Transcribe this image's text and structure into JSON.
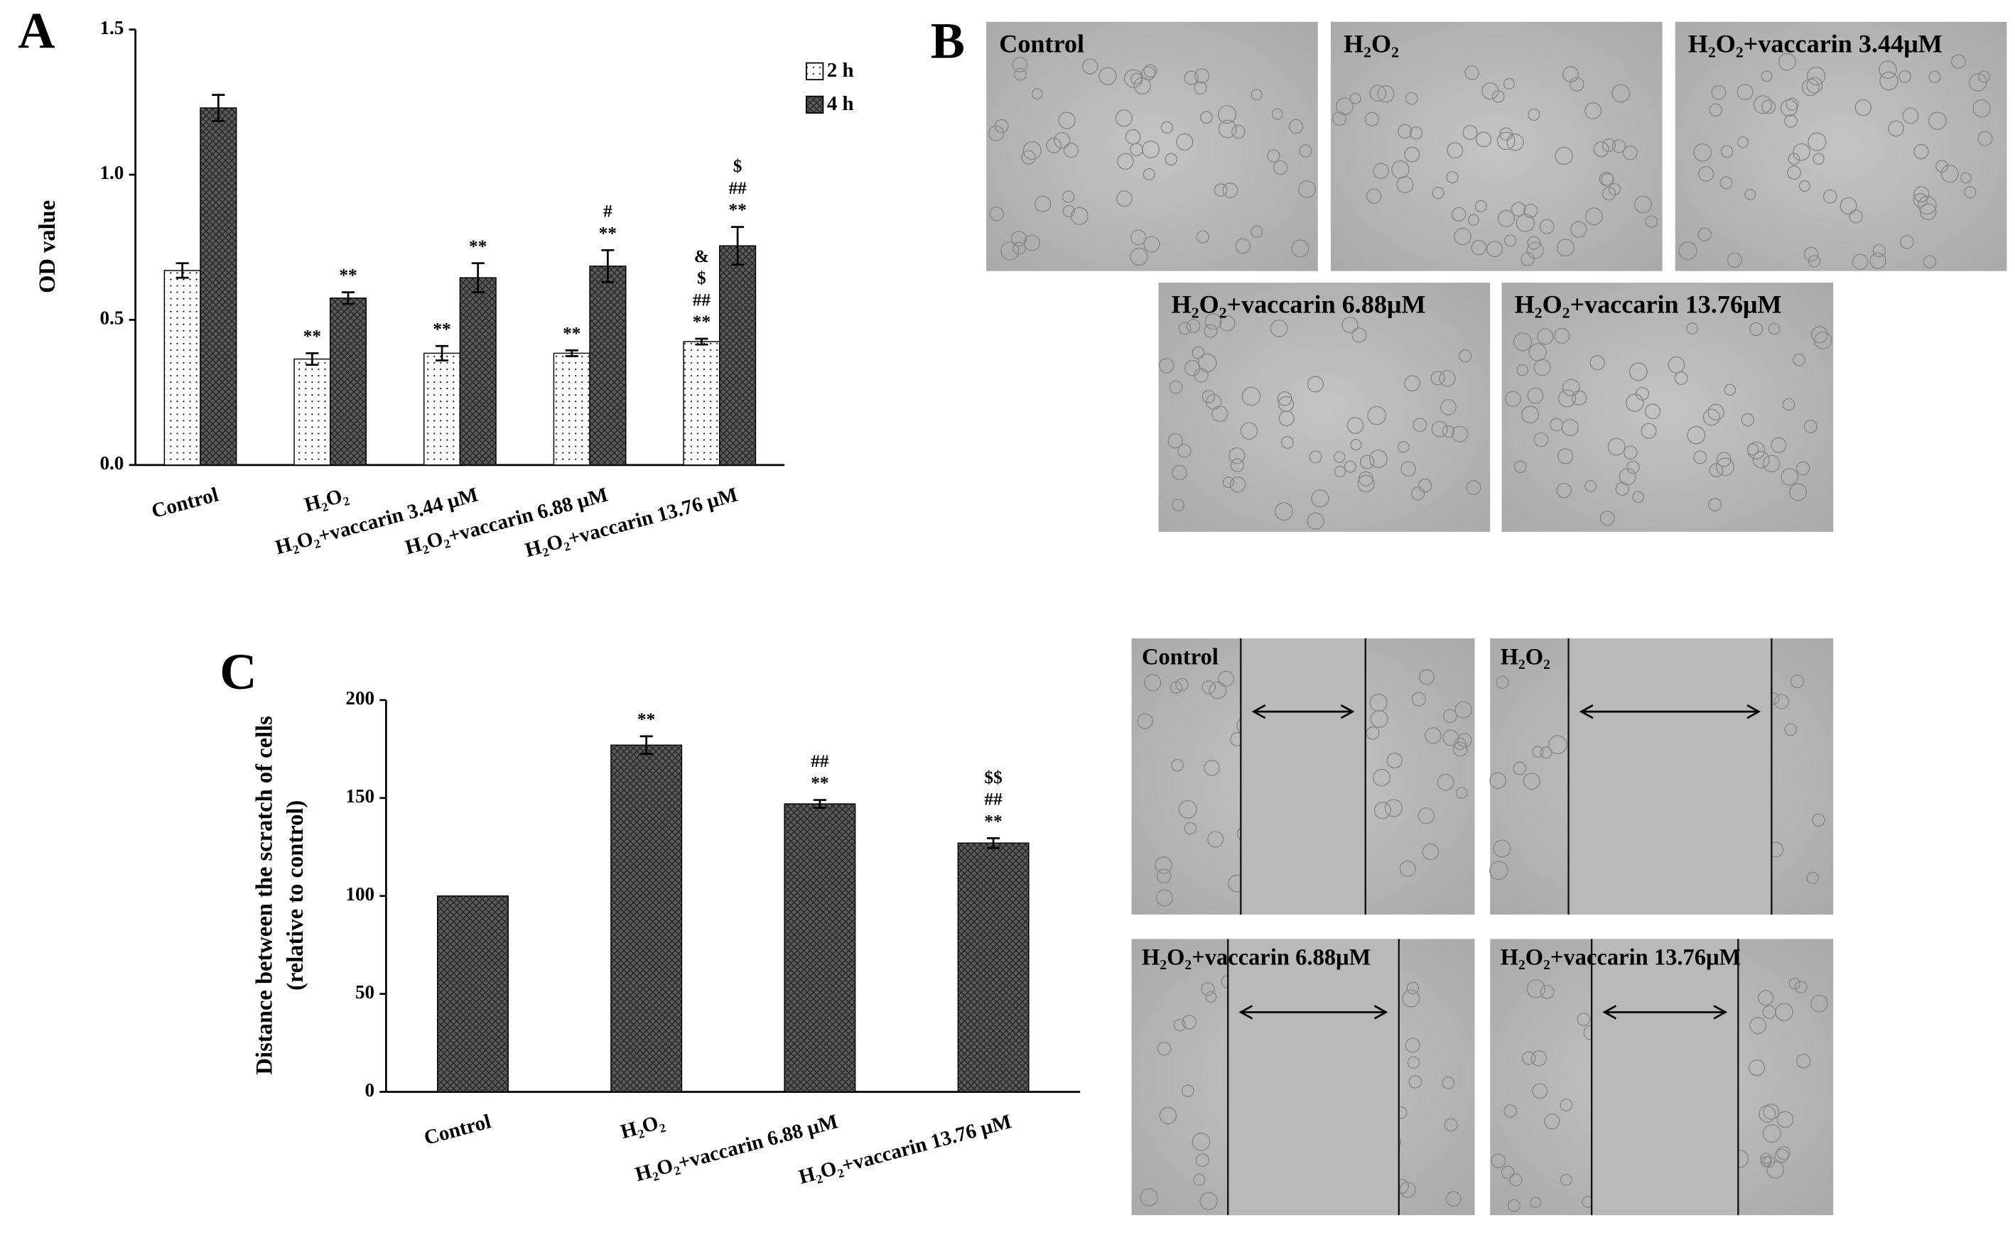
{
  "panel_letters": [
    "A",
    "B",
    "C"
  ],
  "chart_data": [
    {
      "type": "bar",
      "y_label": [
        "OD value"
      ],
      "categories": [
        "Control",
        "H₂O₂",
        "H₂O₂+vaccarin 3.44 μM",
        "H₂O₂+vaccarin 6.88 μM",
        "H₂O₂+vaccarin 13.76 μM"
      ],
      "series": [
        {
          "name": "2 h",
          "color": "#ffffff",
          "pattern": "dots",
          "values": [
            0.67,
            0.365,
            0.385,
            0.385,
            0.425
          ],
          "errors": [
            0.025,
            0.02,
            0.025,
            0.01,
            0.01
          ],
          "annotations": [
            null,
            [
              "**"
            ],
            [
              "**"
            ],
            [
              "**"
            ],
            [
              "&",
              "$",
              "##",
              "**"
            ]
          ]
        },
        {
          "name": "4 h",
          "color": "#5a5a5a",
          "pattern": "crosshatch",
          "values": [
            1.23,
            0.575,
            0.645,
            0.685,
            0.755
          ],
          "errors": [
            0.045,
            0.02,
            0.05,
            0.055,
            0.065
          ],
          "annotations": [
            null,
            [
              "**"
            ],
            [
              "**"
            ],
            [
              "#",
              "**"
            ],
            [
              "$",
              "##",
              "**"
            ]
          ]
        }
      ],
      "ylim": [
        0,
        1.5
      ],
      "yticks": [
        {
          "value": 0,
          "label": "0.0"
        },
        {
          "value": 0.5,
          "label": "0.5"
        },
        {
          "value": 1,
          "label": "1.0"
        },
        {
          "value": 1.5,
          "label": "1.5"
        }
      ],
      "legend": "top-right"
    },
    {
      "type": "bar",
      "y_label": [
        "Distance between the scratch of cells",
        "(relative to control)"
      ],
      "categories": [
        "Control",
        "H₂O₂",
        "H₂O₂+vaccarin 6.88 μM",
        "H₂O₂+vaccarin 13.76 μM"
      ],
      "series": [
        {
          "color": "#5a5a5a",
          "pattern": "crosshatch",
          "values": [
            100,
            177,
            147,
            127
          ],
          "errors": [
            null,
            4.5,
            2,
            2.5
          ],
          "annotations": [
            null,
            [
              "**"
            ],
            [
              "##",
              "**"
            ],
            [
              "$$",
              "##",
              "**"
            ]
          ]
        }
      ],
      "ylim": [
        0,
        200
      ],
      "yticks": [
        0,
        50,
        100,
        150,
        200
      ]
    }
  ],
  "micrographs": [
    "Control",
    "H₂O₂",
    "H₂O₂+vaccarin 3.44μM",
    "H₂O₂+vaccarin 6.88μM",
    "H₂O₂+vaccarin 13.76μM"
  ],
  "scratch_images": [
    "Control",
    "H₂O₂",
    "H₂O₂+vaccarin 6.88μM",
    "H₂O₂+vaccarin 13.76μM"
  ]
}
